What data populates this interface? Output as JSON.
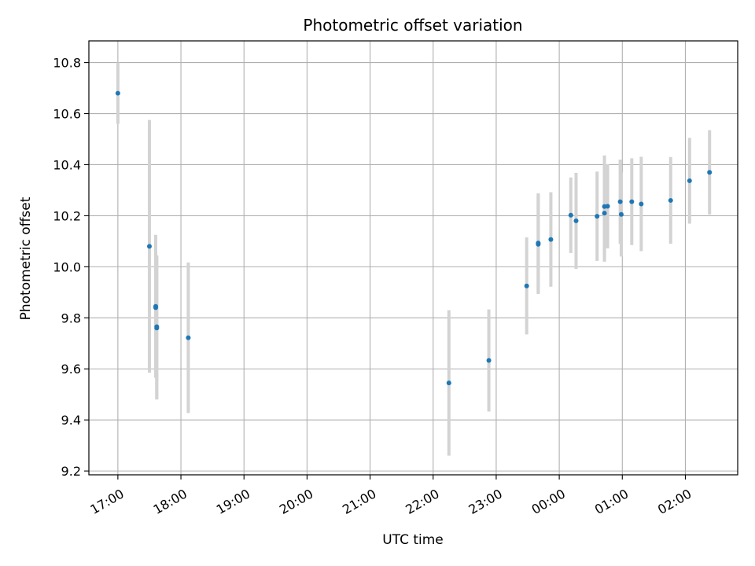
{
  "chart_data": {
    "type": "scatter",
    "title": "Photometric offset variation",
    "xlabel": "UTC time",
    "ylabel": "Photometric offset",
    "grid": true,
    "x_tick_labels": [
      "17:00",
      "18:00",
      "19:00",
      "20:00",
      "21:00",
      "22:00",
      "23:00",
      "00:00",
      "01:00",
      "02:00"
    ],
    "y_tick_labels": [
      "9.2",
      "9.4",
      "9.6",
      "9.8",
      "10.0",
      "10.2",
      "10.4",
      "10.6",
      "10.8"
    ],
    "y_ticks": [
      9.2,
      9.4,
      9.6,
      9.8,
      10.0,
      10.2,
      10.4,
      10.6,
      10.8
    ],
    "xlim_hours": [
      16.54,
      26.83
    ],
    "ylim": [
      9.185,
      10.885
    ],
    "colors": {
      "points": "#1f77b4",
      "errorbars": "#d3d3d3",
      "grid": "#b0b0b0"
    },
    "series": [
      {
        "x": [
          "17:00",
          "17:30",
          "17:36",
          "17:36",
          "17:37",
          "17:37",
          "18:07",
          "22:15",
          "22:53",
          "23:29",
          "23:40",
          "23:40",
          "23:52",
          "00:11",
          "00:16",
          "00:36",
          "00:43",
          "00:43",
          "00:46",
          "00:58",
          "00:59",
          "01:09",
          "01:18",
          "01:46",
          "02:04",
          "02:23"
        ],
        "y": [
          10.68,
          10.08,
          9.845,
          9.84,
          9.765,
          9.76,
          9.722,
          9.545,
          9.633,
          9.925,
          10.093,
          10.088,
          10.107,
          10.202,
          10.18,
          10.198,
          10.236,
          10.21,
          10.237,
          10.255,
          10.205,
          10.255,
          10.246,
          10.26,
          10.337,
          10.37
        ],
        "yerr": [
          0.12,
          0.495,
          0.28,
          0.22,
          0.28,
          0.28,
          0.295,
          0.285,
          0.2,
          0.19,
          0.195,
          0.195,
          0.185,
          0.148,
          0.188,
          0.175,
          0.2,
          0.19,
          0.165,
          0.165,
          0.165,
          0.17,
          0.185,
          0.17,
          0.168,
          0.165
        ]
      }
    ]
  }
}
